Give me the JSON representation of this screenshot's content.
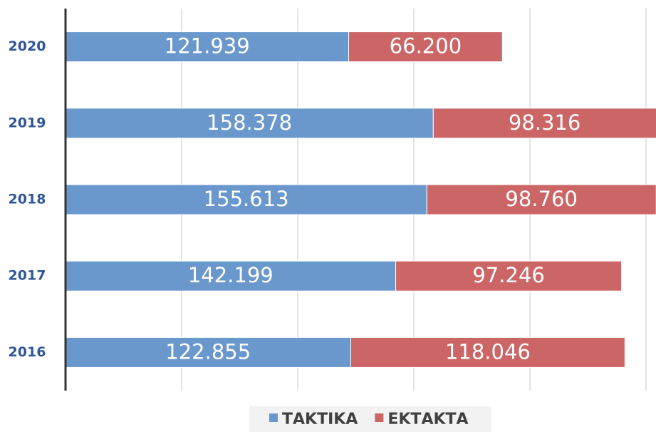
{
  "chart_data": {
    "type": "stacked_bar_horizontal",
    "categories": [
      "2020",
      "2019",
      "2018",
      "2017",
      "2016"
    ],
    "series": [
      {
        "name": "ΤΑΚΤΙΚΑ",
        "color": "#6a98cc",
        "values": [
          121939,
          158378,
          155613,
          142199,
          122855
        ],
        "value_labels": [
          "121.939",
          "158.378",
          "155.613",
          "142.199",
          "122.855"
        ]
      },
      {
        "name": "ΕΚΤΑΚΤΑ",
        "color": "#cc6666",
        "values": [
          66200,
          98316,
          98760,
          97246,
          118046
        ],
        "value_labels": [
          "66.200",
          "98.316",
          "98.760",
          "97.246",
          "118.046"
        ]
      }
    ],
    "xlim": [
      0,
      250000
    ],
    "xticks": [
      0,
      50000,
      100000,
      150000,
      200000,
      250000
    ],
    "grid": true,
    "legend": "bottom"
  }
}
